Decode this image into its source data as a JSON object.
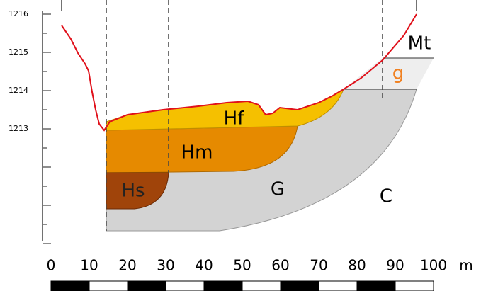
{
  "elevation_ticks": [
    "1216",
    "1215",
    "1214",
    "1213"
  ],
  "layers": [
    {
      "label": "Hf"
    },
    {
      "label": "Hm"
    },
    {
      "label": "Hs"
    },
    {
      "label": "G"
    },
    {
      "label": "C"
    },
    {
      "label": "Mt"
    },
    {
      "label": "g"
    }
  ],
  "scale": {
    "labels": [
      "0",
      "10",
      "20",
      "30",
      "40",
      "50",
      "60",
      "70",
      "80",
      "90",
      "100"
    ],
    "unit": "m"
  }
}
